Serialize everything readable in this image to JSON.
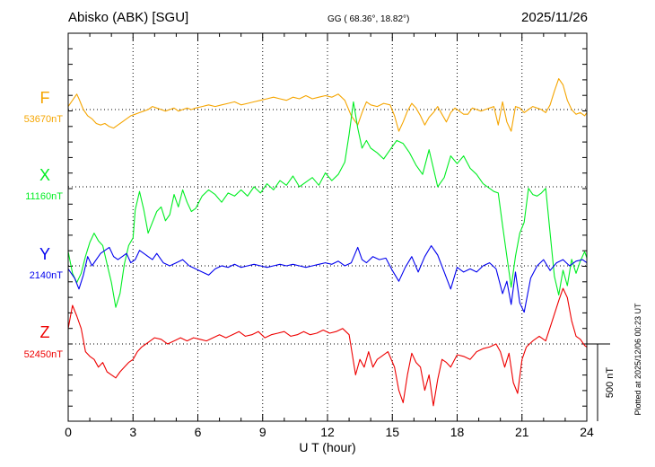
{
  "header": {
    "station": "Abisko (ABK)  [SGU]",
    "coords": "GG ( 68.36°,  18.82°)",
    "date": "2025/11/26"
  },
  "footer": {
    "plotted": "Plotted at 2025/12/06 00:23 UT"
  },
  "chart_data": {
    "type": "line",
    "xlabel": "U T (hour)",
    "xlim": [
      0,
      24
    ],
    "xticks": [
      0,
      3,
      6,
      9,
      12,
      15,
      18,
      21,
      24
    ],
    "grid": true,
    "scale_bar": {
      "label": "500 nT",
      "value_nT": 500
    },
    "series": [
      {
        "name": "F",
        "baseline": "53670nT",
        "baseline_nT": 53670,
        "color": "#f5a500",
        "x": [
          0,
          0.2,
          0.4,
          0.5,
          0.7,
          0.9,
          1.1,
          1.3,
          1.5,
          1.7,
          1.9,
          2.1,
          2.3,
          2.5,
          2.7,
          2.9,
          3.1,
          3.3,
          3.5,
          3.7,
          3.9,
          4.1,
          4.3,
          4.5,
          4.7,
          4.9,
          5.1,
          5.3,
          5.5,
          5.7,
          5.9,
          6.2,
          6.5,
          6.8,
          7.1,
          7.4,
          7.7,
          8.0,
          8.3,
          8.6,
          8.9,
          9.2,
          9.5,
          9.8,
          10.1,
          10.4,
          10.7,
          11.0,
          11.3,
          11.6,
          11.9,
          12.2,
          12.5,
          12.8,
          13.1,
          13.4,
          13.6,
          13.8,
          14.0,
          14.3,
          14.6,
          14.9,
          15.1,
          15.3,
          15.5,
          15.7,
          15.9,
          16.1,
          16.3,
          16.5,
          16.7,
          16.9,
          17.1,
          17.3,
          17.5,
          17.7,
          17.9,
          18.1,
          18.3,
          18.5,
          18.7,
          18.9,
          19.1,
          19.3,
          19.5,
          19.7,
          19.9,
          20.1,
          20.3,
          20.5,
          20.7,
          20.9,
          21.1,
          21.3,
          21.5,
          21.7,
          21.9,
          22.1,
          22.3,
          22.5,
          22.7,
          22.9,
          23.1,
          23.3,
          23.5,
          23.7,
          23.9,
          24
        ],
        "y": [
          20,
          60,
          100,
          70,
          0,
          -40,
          -60,
          -90,
          -100,
          -90,
          -110,
          -120,
          -100,
          -80,
          -60,
          -40,
          -30,
          -20,
          -10,
          0,
          20,
          10,
          0,
          -10,
          0,
          10,
          -10,
          0,
          10,
          0,
          10,
          20,
          30,
          20,
          30,
          40,
          50,
          30,
          40,
          50,
          60,
          70,
          80,
          70,
          60,
          80,
          70,
          90,
          70,
          80,
          90,
          80,
          100,
          60,
          -40,
          -100,
          -20,
          50,
          30,
          20,
          40,
          30,
          -40,
          -140,
          -80,
          -10,
          40,
          10,
          -40,
          -100,
          -50,
          -20,
          20,
          -30,
          -80,
          -20,
          10,
          -10,
          -30,
          -30,
          10,
          0,
          -10,
          0,
          10,
          20,
          -100,
          50,
          -80,
          -140,
          20,
          10,
          -20,
          0,
          20,
          10,
          0,
          -20,
          30,
          120,
          200,
          160,
          60,
          0,
          -30,
          -20,
          -40,
          -20
        ]
      },
      {
        "name": "X",
        "baseline": "11160nT",
        "baseline_nT": 11160,
        "color": "#00ee22",
        "x": [
          0,
          0.2,
          0.4,
          0.6,
          0.8,
          1.0,
          1.2,
          1.4,
          1.6,
          1.8,
          2.0,
          2.2,
          2.4,
          2.6,
          2.8,
          3.0,
          3.1,
          3.3,
          3.5,
          3.7,
          3.9,
          4.1,
          4.3,
          4.5,
          4.7,
          4.9,
          5.1,
          5.3,
          5.5,
          5.7,
          5.9,
          6.2,
          6.5,
          6.8,
          7.1,
          7.4,
          7.7,
          8.0,
          8.3,
          8.6,
          8.9,
          9.2,
          9.5,
          9.8,
          10.1,
          10.4,
          10.7,
          11.0,
          11.3,
          11.6,
          11.9,
          12.2,
          12.5,
          12.8,
          13.0,
          13.2,
          13.4,
          13.6,
          13.8,
          14.0,
          14.3,
          14.6,
          14.9,
          15.2,
          15.5,
          15.8,
          16.1,
          16.4,
          16.7,
          16.9,
          17.1,
          17.4,
          17.7,
          18.0,
          18.3,
          18.6,
          18.9,
          19.2,
          19.5,
          19.7,
          19.9,
          20.1,
          20.3,
          20.5,
          20.7,
          20.9,
          21.1,
          21.3,
          21.5,
          21.7,
          21.9,
          22.1,
          22.3,
          22.5,
          22.7,
          22.9,
          23.1,
          23.3,
          23.5,
          23.7,
          23.9,
          24
        ],
        "y": [
          -420,
          -560,
          -620,
          -560,
          -450,
          -360,
          -300,
          -350,
          -380,
          -500,
          -620,
          -780,
          -690,
          -500,
          -380,
          -330,
          -150,
          -30,
          -150,
          -300,
          -230,
          -160,
          -130,
          -220,
          -180,
          -50,
          -130,
          -20,
          -100,
          -160,
          -140,
          -60,
          -20,
          -50,
          -100,
          -40,
          -60,
          -20,
          -60,
          0,
          -40,
          20,
          -20,
          40,
          10,
          70,
          0,
          30,
          60,
          10,
          90,
          40,
          80,
          160,
          340,
          550,
          380,
          250,
          300,
          250,
          220,
          180,
          240,
          300,
          280,
          220,
          140,
          80,
          240,
          120,
          0,
          60,
          200,
          150,
          200,
          120,
          80,
          20,
          -10,
          -30,
          -40,
          -250,
          -450,
          -650,
          -450,
          -300,
          -230,
          -10,
          -50,
          -60,
          -40,
          -10,
          -300,
          -580,
          -700,
          -540,
          -640,
          -470,
          -560,
          -480,
          -420,
          -460
        ]
      },
      {
        "name": "Y",
        "baseline": "2140nT",
        "baseline_nT": 2140,
        "color": "#0000ee",
        "x": [
          0,
          0.3,
          0.5,
          0.7,
          0.9,
          1.1,
          1.3,
          1.5,
          1.7,
          1.9,
          2.1,
          2.3,
          2.5,
          2.7,
          2.9,
          3.1,
          3.3,
          3.5,
          3.7,
          3.9,
          4.1,
          4.4,
          4.7,
          5.0,
          5.3,
          5.6,
          5.9,
          6.2,
          6.5,
          6.8,
          7.1,
          7.4,
          7.7,
          8.0,
          8.3,
          8.6,
          8.9,
          9.2,
          9.5,
          9.8,
          10.1,
          10.4,
          10.7,
          11.0,
          11.3,
          11.6,
          11.9,
          12.2,
          12.5,
          12.8,
          13.1,
          13.4,
          13.6,
          13.8,
          14.1,
          14.4,
          14.7,
          15.0,
          15.3,
          15.6,
          15.9,
          16.2,
          16.5,
          16.8,
          17.1,
          17.4,
          17.7,
          18.0,
          18.3,
          18.6,
          18.9,
          19.2,
          19.5,
          19.8,
          20.1,
          20.3,
          20.5,
          20.7,
          20.9,
          21.1,
          21.4,
          21.7,
          22.0,
          22.3,
          22.6,
          22.9,
          23.2,
          23.5,
          23.8,
          24
        ],
        "y": [
          -20,
          -80,
          -150,
          -60,
          60,
          0,
          40,
          80,
          100,
          120,
          60,
          40,
          60,
          80,
          20,
          40,
          100,
          80,
          60,
          40,
          80,
          20,
          0,
          20,
          40,
          0,
          -20,
          -40,
          -60,
          -20,
          0,
          -10,
          10,
          -10,
          0,
          10,
          0,
          -10,
          0,
          10,
          0,
          10,
          0,
          -10,
          0,
          10,
          20,
          10,
          30,
          0,
          20,
          120,
          40,
          20,
          60,
          40,
          50,
          -30,
          -100,
          -10,
          60,
          -40,
          60,
          130,
          70,
          -40,
          -150,
          -10,
          -40,
          -20,
          -40,
          0,
          20,
          -20,
          -180,
          -100,
          -250,
          -40,
          -240,
          -300,
          -80,
          0,
          40,
          -30,
          20,
          40,
          0,
          30,
          40,
          20
        ]
      },
      {
        "name": "Z",
        "baseline": "52450nT",
        "baseline_nT": 52450,
        "color": "#ee0000",
        "x": [
          0,
          0.2,
          0.4,
          0.6,
          0.8,
          1.0,
          1.2,
          1.4,
          1.6,
          1.8,
          2.0,
          2.2,
          2.4,
          2.6,
          2.8,
          3.0,
          3.2,
          3.4,
          3.6,
          3.8,
          4.0,
          4.3,
          4.6,
          4.9,
          5.2,
          5.5,
          5.8,
          6.1,
          6.4,
          6.7,
          7.0,
          7.3,
          7.6,
          7.9,
          8.2,
          8.5,
          8.8,
          9.1,
          9.4,
          9.7,
          10.0,
          10.3,
          10.6,
          10.9,
          11.2,
          11.5,
          11.8,
          12.1,
          12.4,
          12.7,
          13.0,
          13.3,
          13.5,
          13.7,
          13.9,
          14.1,
          14.3,
          14.5,
          14.8,
          15.1,
          15.3,
          15.5,
          15.7,
          15.9,
          16.1,
          16.3,
          16.5,
          16.7,
          16.9,
          17.1,
          17.3,
          17.5,
          17.7,
          18.0,
          18.3,
          18.6,
          18.9,
          19.2,
          19.5,
          19.8,
          20.0,
          20.2,
          20.4,
          20.6,
          20.8,
          21.0,
          21.2,
          21.5,
          21.8,
          22.1,
          22.4,
          22.7,
          22.9,
          23.1,
          23.3,
          23.5,
          23.7,
          23.9,
          24
        ],
        "y": [
          100,
          250,
          180,
          100,
          -50,
          -80,
          -100,
          -150,
          -120,
          -180,
          -200,
          -220,
          -180,
          -150,
          -120,
          -100,
          -50,
          -20,
          0,
          20,
          40,
          30,
          0,
          20,
          40,
          20,
          40,
          30,
          20,
          40,
          60,
          40,
          60,
          80,
          50,
          60,
          80,
          40,
          60,
          70,
          80,
          50,
          60,
          80,
          60,
          70,
          90,
          70,
          80,
          100,
          60,
          -200,
          -100,
          -150,
          -50,
          -150,
          -100,
          -80,
          -50,
          -150,
          -300,
          -380,
          -200,
          -60,
          -120,
          -150,
          -300,
          -200,
          -400,
          -230,
          -100,
          -120,
          -150,
          -70,
          -80,
          -100,
          -50,
          -30,
          -20,
          0,
          -50,
          -150,
          -60,
          -250,
          -320,
          -100,
          -20,
          20,
          50,
          20,
          150,
          280,
          360,
          300,
          150,
          50,
          30,
          -10,
          -20
        ]
      }
    ]
  }
}
